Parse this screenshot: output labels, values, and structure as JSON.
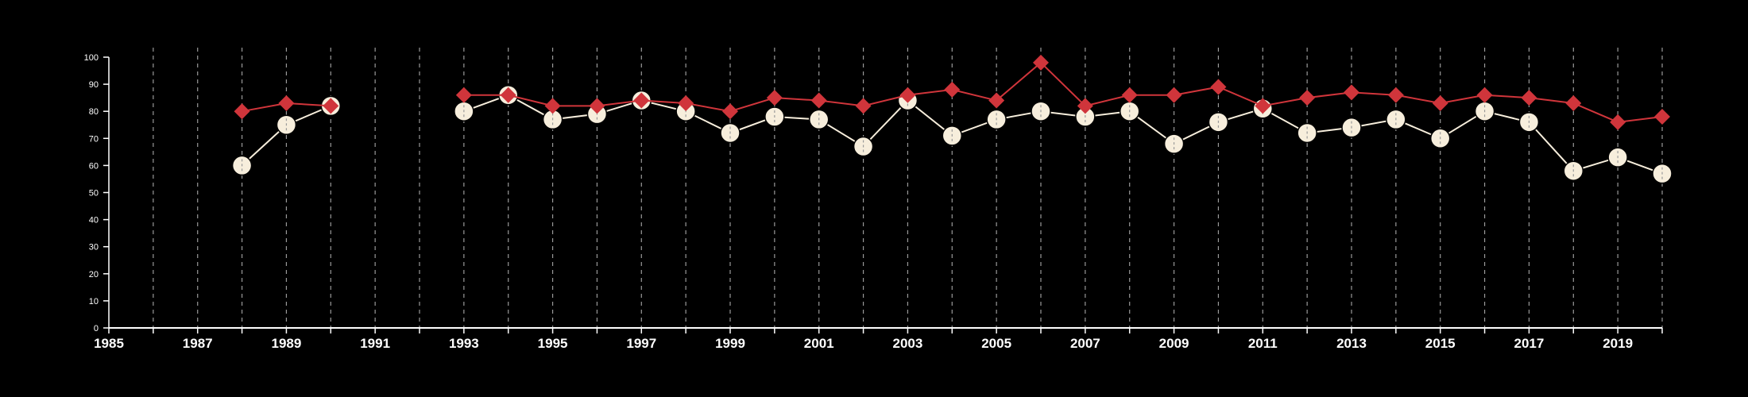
{
  "chart_data": {
    "type": "line",
    "title": "",
    "xlabel": "",
    "ylabel": "",
    "xlim": [
      1985,
      2020
    ],
    "ylim": [
      0,
      100
    ],
    "x_tick_labels": [
      "1985",
      "1987",
      "1989",
      "1991",
      "1993",
      "1995",
      "1997",
      "1999",
      "2001",
      "2003",
      "2005",
      "2007",
      "2009",
      "2011",
      "2013",
      "2015",
      "2017",
      "2019"
    ],
    "y_tick_labels": [
      "0",
      "10",
      "20",
      "30",
      "40",
      "50",
      "60",
      "70",
      "80",
      "90",
      "100"
    ],
    "vertical_gridlines": "dashed, every year",
    "series": [
      {
        "color": "#d0353b",
        "marker": "diamond",
        "points": [
          [
            1988,
            80
          ],
          [
            1989,
            83
          ],
          [
            1990,
            82
          ],
          [
            1993,
            86
          ],
          [
            1994,
            86
          ],
          [
            1995,
            82
          ],
          [
            1996,
            82
          ],
          [
            1997,
            84
          ],
          [
            1998,
            83
          ],
          [
            1999,
            80
          ],
          [
            2000,
            85
          ],
          [
            2001,
            84
          ],
          [
            2002,
            82
          ],
          [
            2003,
            86
          ],
          [
            2004,
            88
          ],
          [
            2005,
            84
          ],
          [
            2006,
            98
          ],
          [
            2007,
            82
          ],
          [
            2008,
            86
          ],
          [
            2009,
            86
          ],
          [
            2010,
            89
          ],
          [
            2011,
            82
          ],
          [
            2012,
            85
          ],
          [
            2013,
            87
          ],
          [
            2014,
            86
          ],
          [
            2015,
            83
          ],
          [
            2016,
            86
          ],
          [
            2017,
            85
          ],
          [
            2018,
            83
          ],
          [
            2019,
            76
          ],
          [
            2020,
            78
          ]
        ]
      },
      {
        "color": "#f7eedc",
        "marker": "circle",
        "points": [
          [
            1988,
            60
          ],
          [
            1989,
            75
          ],
          [
            1990,
            82
          ],
          [
            1993,
            80
          ],
          [
            1994,
            86
          ],
          [
            1995,
            77
          ],
          [
            1996,
            79
          ],
          [
            1997,
            84
          ],
          [
            1998,
            80
          ],
          [
            1999,
            72
          ],
          [
            2000,
            78
          ],
          [
            2001,
            77
          ],
          [
            2002,
            67
          ],
          [
            2003,
            84
          ],
          [
            2004,
            71
          ],
          [
            2005,
            77
          ],
          [
            2006,
            80
          ],
          [
            2007,
            78
          ],
          [
            2008,
            80
          ],
          [
            2009,
            68
          ],
          [
            2010,
            76
          ],
          [
            2011,
            81
          ],
          [
            2012,
            72
          ],
          [
            2013,
            74
          ],
          [
            2014,
            77
          ],
          [
            2015,
            70
          ],
          [
            2016,
            80
          ],
          [
            2017,
            76
          ],
          [
            2018,
            58
          ],
          [
            2019,
            63
          ],
          [
            2020,
            57
          ]
        ]
      }
    ]
  }
}
